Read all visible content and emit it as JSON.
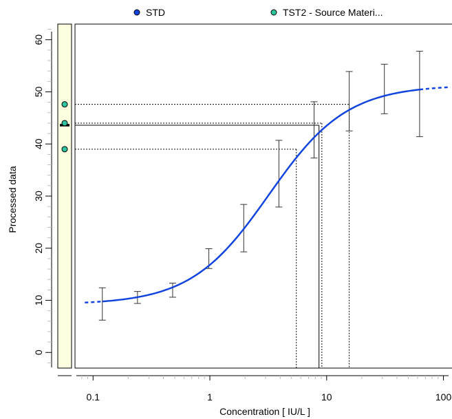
{
  "chart_data": {
    "type": "line",
    "xlabel": "Concentration  [ IU/L ]",
    "ylabel": "Processed data",
    "x_scale": "log",
    "xlim": [
      0.07,
      120
    ],
    "ylim": [
      -3,
      63
    ],
    "x_ticks": [
      {
        "value": 0.1,
        "label": "0.1"
      },
      {
        "value": 1,
        "label": "1"
      },
      {
        "value": 10,
        "label": "10"
      },
      {
        "value": 100,
        "label": "100"
      }
    ],
    "y_ticks": [
      {
        "value": 0,
        "label": "0"
      },
      {
        "value": 10,
        "label": "10"
      },
      {
        "value": 20,
        "label": "20"
      },
      {
        "value": 30,
        "label": "30"
      },
      {
        "value": 40,
        "label": "40"
      },
      {
        "value": 50,
        "label": "50"
      },
      {
        "value": 60,
        "label": "60"
      }
    ],
    "legend": {
      "placement": "top",
      "items": [
        {
          "label": "STD",
          "color": "#1144dd"
        },
        {
          "label": "TST2 - Source Materi...",
          "color": "#2ec4a0"
        }
      ]
    },
    "std_points": [
      {
        "x": 0.12,
        "y": 9.3,
        "lower": 6.2,
        "upper": 12.4
      },
      {
        "x": 0.24,
        "y": 10.6,
        "lower": 9.4,
        "upper": 11.7
      },
      {
        "x": 0.48,
        "y": 12.0,
        "lower": 10.6,
        "upper": 13.3
      },
      {
        "x": 0.98,
        "y": 18.0,
        "lower": 16.1,
        "upper": 19.9
      },
      {
        "x": 1.95,
        "y": 23.8,
        "lower": 19.3,
        "upper": 28.4
      },
      {
        "x": 3.9,
        "y": 34.3,
        "lower": 27.9,
        "upper": 40.7
      },
      {
        "x": 7.8,
        "y": 42.7,
        "lower": 37.3,
        "upper": 48.1
      },
      {
        "x": 15.6,
        "y": 48.2,
        "lower": 42.5,
        "upper": 53.9
      },
      {
        "x": 31.2,
        "y": 50.6,
        "lower": 45.8,
        "upper": 55.3
      },
      {
        "x": 62.5,
        "y": 49.6,
        "lower": 41.4,
        "upper": 57.8
      }
    ],
    "fit_curve": {
      "color": "#1144dd",
      "bottom": 9.2,
      "top": 51.3,
      "ec50": 3.2,
      "hill": 1.3,
      "solid_range": [
        0.12,
        62.5
      ],
      "dashed_range": [
        0.085,
        115
      ]
    },
    "tst2_samples": [
      {
        "y": 47.6,
        "x": 15.6
      },
      {
        "y": 44.0,
        "x": 9.1
      },
      {
        "y": 39.0,
        "x": 5.5
      }
    ],
    "tst2_mean": {
      "y": 43.6,
      "x": 8.6
    },
    "tst2_color": "#2ec4a0"
  }
}
